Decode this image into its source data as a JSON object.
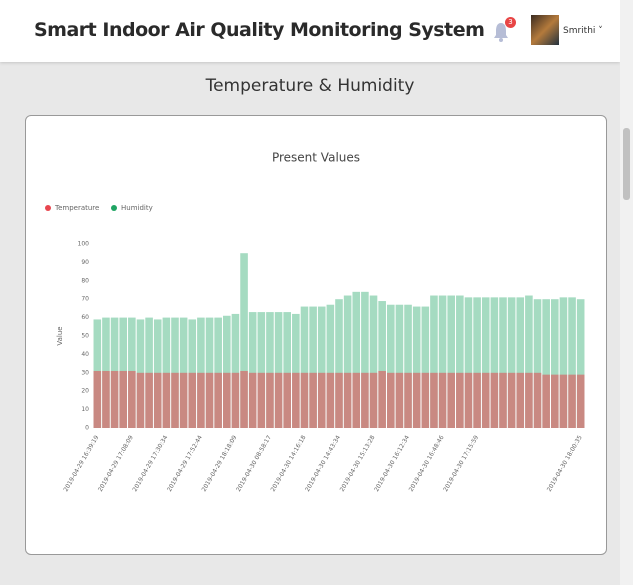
{
  "header": {
    "title": "Smart Indoor Air Quality Monitoring System",
    "notification_count": 3,
    "user": "Smrithi"
  },
  "page_title": "Temperature & Humidity",
  "chart_data": {
    "type": "bar",
    "title": "Present Values",
    "y_label": "Value",
    "categories": [
      "2019-04-29 16:39:19",
      null,
      null,
      null,
      "2019-04-29 17:08:09",
      null,
      null,
      null,
      "2019-04-29 17:30:34",
      null,
      null,
      null,
      "2019-04-29 17:52:44",
      null,
      null,
      null,
      "2019-04-29 18:18:09",
      null,
      null,
      null,
      "2019-04-30 08:58:17",
      null,
      null,
      null,
      "2019-04-30 14:16:18",
      null,
      null,
      null,
      "2019-04-30 14:43:34",
      null,
      null,
      null,
      "2019-04-30 15:13:28",
      null,
      null,
      null,
      "2019-04-30 16:12:34",
      null,
      null,
      null,
      "2019-04-30 16:48:46",
      null,
      null,
      null,
      "2019-04-30 17:15:59",
      null,
      null,
      null,
      null,
      null,
      null,
      null,
      null,
      null,
      null,
      null,
      "2019-04-30 18:00:35"
    ],
    "series": [
      {
        "name": "Temperature",
        "color": "#e8464f",
        "values": [
          31,
          31,
          31,
          31,
          31,
          30,
          30,
          30,
          30,
          30,
          30,
          30,
          30,
          30,
          30,
          30,
          30,
          31,
          30,
          30,
          30,
          30,
          30,
          30,
          30,
          30,
          30,
          30,
          30,
          30,
          30,
          30,
          30,
          31,
          30,
          30,
          30,
          30,
          30,
          30,
          30,
          30,
          30,
          30,
          30,
          30,
          30,
          30,
          30,
          30,
          30,
          30,
          29,
          29,
          29,
          29,
          29
        ]
      },
      {
        "name": "Humidity",
        "color": "#1fa463",
        "values": [
          59,
          60,
          60,
          60,
          60,
          59,
          60,
          59,
          60,
          60,
          60,
          59,
          60,
          60,
          60,
          61,
          62,
          95,
          63,
          63,
          63,
          63,
          63,
          62,
          66,
          66,
          66,
          67,
          70,
          72,
          74,
          74,
          72,
          69,
          67,
          67,
          67,
          66,
          66,
          72,
          72,
          72,
          72,
          71,
          71,
          71,
          71,
          71,
          71,
          71,
          72,
          70,
          70,
          70,
          71,
          71,
          70
        ]
      }
    ],
    "ylim": [
      0,
      100
    ],
    "yticks": [
      0,
      10,
      20,
      30,
      40,
      50,
      60,
      70,
      80,
      90,
      100
    ],
    "grid": false,
    "legend": "top-left"
  }
}
